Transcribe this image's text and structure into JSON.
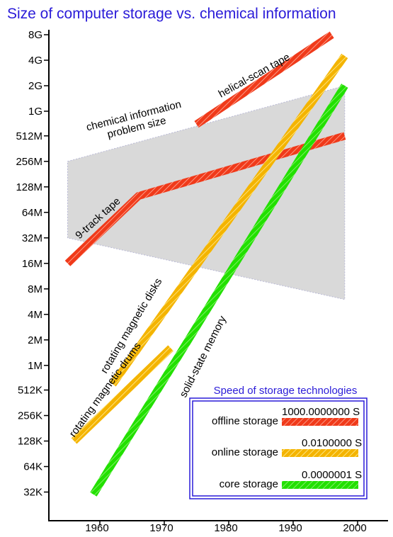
{
  "chart_data": {
    "type": "line",
    "title": "Size of computer storage vs. chemical information",
    "xlabel": "",
    "ylabel": "",
    "yscale": "log2",
    "x_ticks": [
      "1960",
      "1970",
      "1980",
      "1990",
      "2000"
    ],
    "y_ticks": [
      "32K",
      "64K",
      "128K",
      "256K",
      "512K",
      "1M",
      "2M",
      "4M",
      "8M",
      "16M",
      "32M",
      "64M",
      "128M",
      "256M",
      "512M",
      "1G",
      "2G",
      "4G",
      "8G"
    ],
    "region": {
      "label": [
        "chemical information",
        "problem size"
      ],
      "color": "#d9d9d9",
      "upper": [
        {
          "x": 1955,
          "y": "256M"
        },
        {
          "x": 1998,
          "y": "2G"
        }
      ],
      "lower": [
        {
          "x": 1955,
          "y": "32M"
        },
        {
          "x": 1998,
          "y": "6M"
        }
      ]
    },
    "series": [
      {
        "name": "9-track tape",
        "category": "offline storage",
        "color": "#f03a1a",
        "points": [
          {
            "x": 1955,
            "y": "16M"
          },
          {
            "x": 1966,
            "y": "100M"
          },
          {
            "x": 1998,
            "y": "512M"
          }
        ]
      },
      {
        "name": "helical-scan tape",
        "category": "offline storage",
        "color": "#f03a1a",
        "points": [
          {
            "x": 1975,
            "y": "700M"
          },
          {
            "x": 1996,
            "y": "8G"
          }
        ]
      },
      {
        "name": "rotating magnetic disks",
        "category": "online storage",
        "color": "#f4b400",
        "points": [
          {
            "x": 1962,
            "y": "600K"
          },
          {
            "x": 1998,
            "y": "4.5G"
          }
        ]
      },
      {
        "name": "rotating magnetic drums",
        "category": "online storage",
        "color": "#f4b400",
        "points": [
          {
            "x": 1956,
            "y": "128K"
          },
          {
            "x": 1971,
            "y": "1.6M"
          }
        ]
      },
      {
        "name": "solid-state memory",
        "category": "core storage",
        "color": "#22e000",
        "points": [
          {
            "x": 1959,
            "y": "30K"
          },
          {
            "x": 1998,
            "y": "2G"
          }
        ]
      }
    ],
    "legend": {
      "title": "Speed of storage technologies",
      "position": "bottom-right",
      "items": [
        {
          "label": "offline storage",
          "value": "1000.0000000 S",
          "color": "#f03a1a"
        },
        {
          "label": "online storage",
          "value": "0.0100000 S",
          "color": "#f4b400"
        },
        {
          "label": "core storage",
          "value": "0.0000001 S",
          "color": "#22e000"
        }
      ]
    },
    "annotations": [
      "9-track tape",
      "helical-scan tape",
      "rotating magnetic disks",
      "rotating magnetic drums",
      "solid-state memory"
    ]
  }
}
